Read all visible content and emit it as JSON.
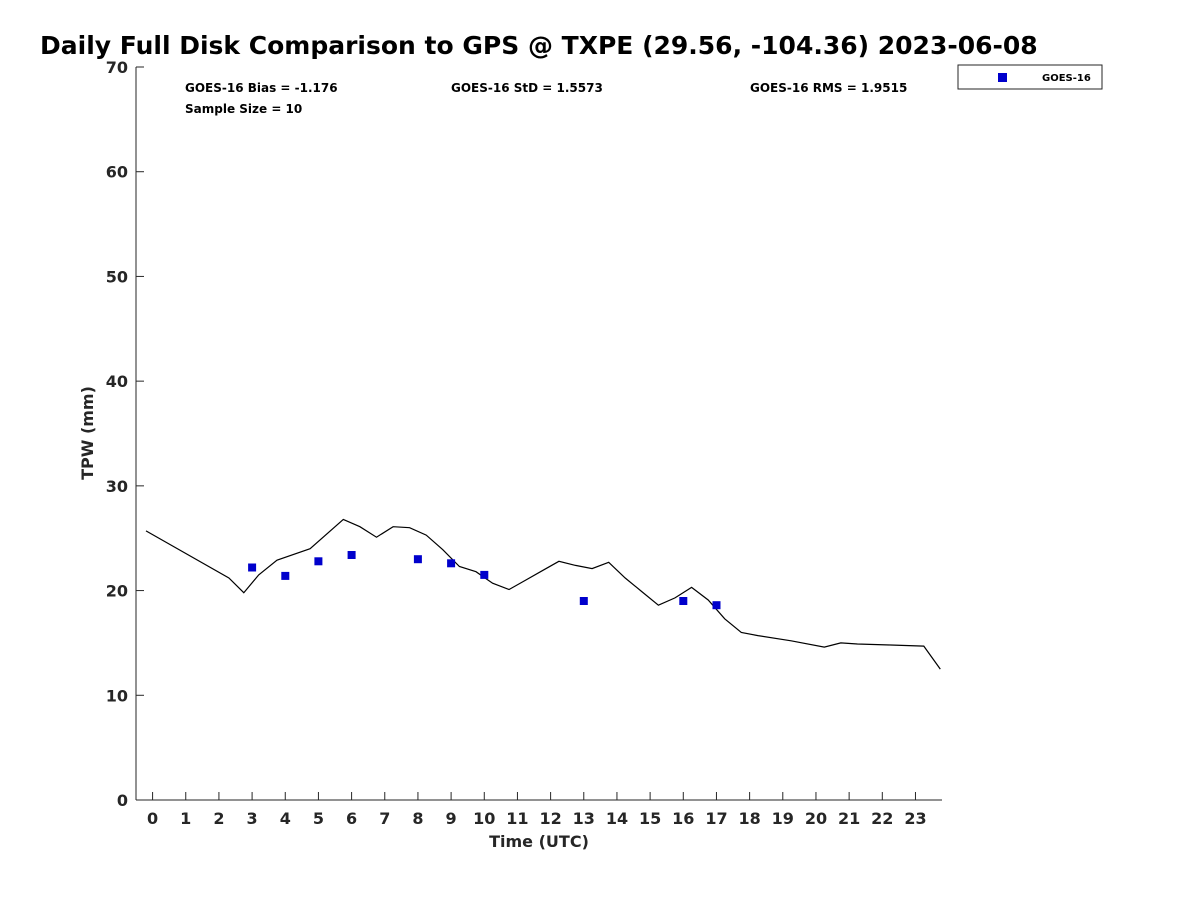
{
  "chart_data": {
    "type": "scatter",
    "title": "Daily Full Disk Comparison to GPS @ TXPE (29.56, -104.36) 2023-06-08",
    "xlabel": "Time (UTC)",
    "ylabel": "TPW (mm)",
    "xlim": [
      -0.5,
      23.8
    ],
    "ylim": [
      0,
      70
    ],
    "x_ticks": [
      0,
      1,
      2,
      3,
      4,
      5,
      6,
      7,
      8,
      9,
      10,
      11,
      12,
      13,
      14,
      15,
      16,
      17,
      18,
      19,
      20,
      21,
      22,
      23
    ],
    "y_ticks": [
      0,
      10,
      20,
      30,
      40,
      50,
      60,
      70
    ],
    "grid": false,
    "legend_position": "top-right",
    "stats": {
      "bias": "GOES-16 Bias = -1.176",
      "std": "GOES-16 StD = 1.5573",
      "rms": "GOES-16 RMS = 1.9515",
      "sample": "Sample Size = 10"
    },
    "gps_line": {
      "color": "#000000",
      "x": [
        -0.2,
        2.3,
        2.75,
        3.2,
        3.75,
        4.75,
        5.75,
        6.25,
        6.75,
        7.25,
        7.75,
        8.25,
        8.75,
        9.25,
        9.75,
        10.25,
        10.75,
        11.25,
        11.75,
        12.25,
        12.75,
        13.25,
        13.75,
        14.25,
        14.75,
        15.25,
        15.75,
        16.25,
        16.75,
        17.25,
        17.75,
        18.25,
        19.25,
        20.25,
        20.75,
        21.25,
        22.25,
        23.25,
        23.75
      ],
      "y": [
        25.7,
        21.2,
        19.8,
        21.5,
        22.9,
        24.0,
        26.8,
        26.1,
        25.1,
        26.1,
        26.0,
        25.3,
        23.9,
        22.3,
        21.8,
        20.7,
        20.1,
        21.0,
        21.9,
        22.8,
        22.4,
        22.1,
        22.7,
        21.2,
        19.9,
        18.6,
        19.3,
        20.3,
        19.1,
        17.3,
        16.0,
        15.7,
        15.2,
        14.6,
        15.0,
        14.9,
        14.8,
        14.7,
        12.5
      ]
    },
    "series": [
      {
        "name": "GOES-16",
        "color": "#0000CC",
        "marker": "square",
        "x": [
          3,
          4,
          5,
          6,
          8,
          9,
          10,
          13,
          16,
          17
        ],
        "y": [
          22.2,
          21.4,
          22.8,
          23.4,
          23.0,
          22.6,
          21.5,
          19.0,
          19.0,
          18.6
        ]
      }
    ]
  }
}
